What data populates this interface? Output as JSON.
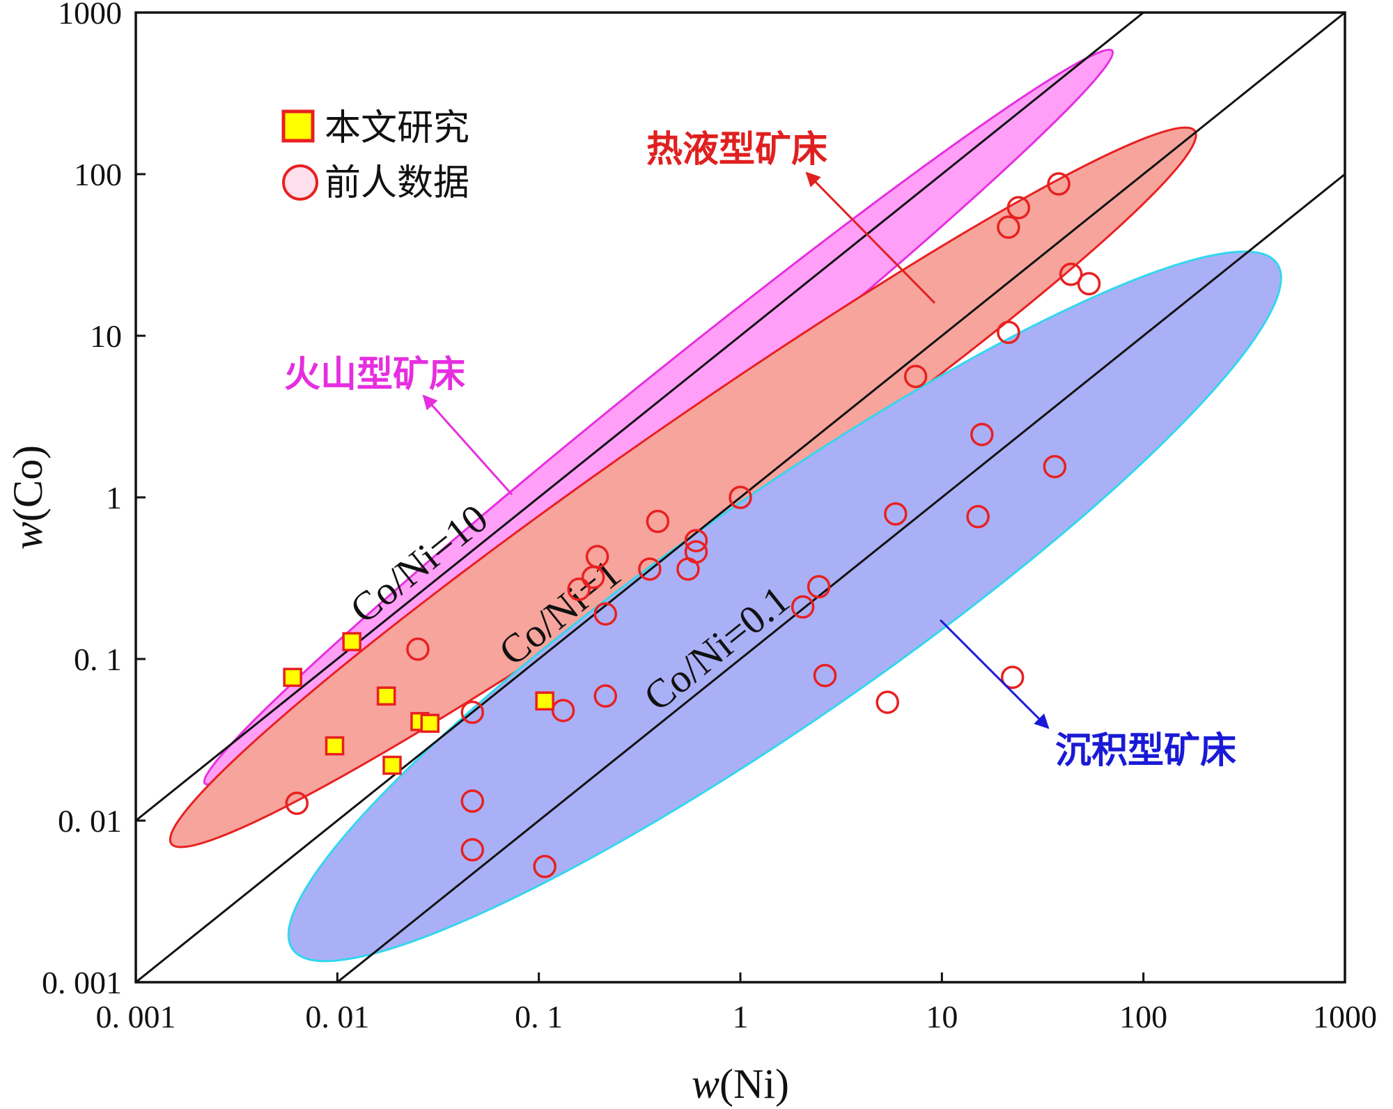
{
  "chart_data": {
    "type": "scatter",
    "scale": "log-log",
    "xlabel": "w(Ni)",
    "ylabel": "w(Co)",
    "xlim": [
      0.001,
      1000
    ],
    "ylim": [
      0.001,
      1000
    ],
    "x_ticks": [
      {
        "value": 0.001,
        "label": "0. 001"
      },
      {
        "value": 0.01,
        "label": "0. 01"
      },
      {
        "value": 0.1,
        "label": "0. 1"
      },
      {
        "value": 1,
        "label": "1"
      },
      {
        "value": 10,
        "label": "10"
      },
      {
        "value": 100,
        "label": "100"
      },
      {
        "value": 1000,
        "label": "1000"
      }
    ],
    "y_ticks": [
      {
        "value": 0.001,
        "label": "0. 001"
      },
      {
        "value": 0.01,
        "label": "0. 01"
      },
      {
        "value": 0.1,
        "label": "0. 1"
      },
      {
        "value": 1,
        "label": "1"
      },
      {
        "value": 10,
        "label": "10"
      },
      {
        "value": 100,
        "label": "100"
      },
      {
        "value": 1000,
        "label": "1000"
      }
    ],
    "reference_lines": [
      {
        "ratio": 10,
        "label": "Co/Ni=10"
      },
      {
        "ratio": 1,
        "label": "Co/Ni=1"
      },
      {
        "ratio": 0.1,
        "label": "Co/Ni=0.1"
      }
    ],
    "zones": [
      {
        "name": "volcanic",
        "label": "火山型矿床",
        "fill": "#ff9ff7",
        "stroke": "#e62ee0",
        "label_color": "#e62ee0",
        "ends": [
          [
            0.0022,
            0.017
          ],
          [
            70,
            580
          ]
        ],
        "half_width_decades": 0.18
      },
      {
        "name": "hydrothermal",
        "label": "热液型矿床",
        "fill": "#f6a49c",
        "stroke": "#e82020",
        "label_color": "#e02020",
        "ends": [
          [
            0.0015,
            0.0072
          ],
          [
            180,
            185
          ]
        ],
        "half_width_decades": 0.3
      },
      {
        "name": "sedimentary",
        "label": "沉积型矿床",
        "fill": "#aab0f6",
        "stroke": "#33d6ee",
        "label_color": "#1a1ad6",
        "ends": [
          [
            0.006,
            0.0016
          ],
          [
            460,
            28
          ]
        ],
        "half_width_decades": 0.55
      }
    ],
    "legend": [
      {
        "marker": "square",
        "label": "本文研究",
        "fill": "#ffff00",
        "stroke": "#e82020"
      },
      {
        "marker": "circle",
        "label": "前人数据",
        "fill": "#fde0ec",
        "stroke": "#e82020"
      }
    ],
    "series": [
      {
        "name": "本文研究",
        "marker": "square",
        "points": [
          [
            0.006,
            0.077
          ],
          [
            0.0118,
            0.128
          ],
          [
            0.0097,
            0.029
          ],
          [
            0.0175,
            0.059
          ],
          [
            0.0257,
            0.041
          ],
          [
            0.0288,
            0.04
          ],
          [
            0.0187,
            0.022
          ],
          [
            0.107,
            0.055
          ]
        ]
      },
      {
        "name": "前人数据",
        "marker": "circle",
        "points": [
          [
            0.0063,
            0.0128
          ],
          [
            0.0251,
            0.115
          ],
          [
            0.0468,
            0.0468
          ],
          [
            0.0468,
            0.0132
          ],
          [
            0.0468,
            0.0066
          ],
          [
            0.107,
            0.0052
          ],
          [
            0.132,
            0.048
          ],
          [
            0.214,
            0.059
          ],
          [
            0.214,
            0.19
          ],
          [
            0.158,
            0.27
          ],
          [
            0.186,
            0.32
          ],
          [
            0.195,
            0.43
          ],
          [
            0.355,
            0.36
          ],
          [
            0.389,
            0.71
          ],
          [
            0.55,
            0.36
          ],
          [
            0.603,
            0.46
          ],
          [
            0.603,
            0.54
          ],
          [
            1.0,
            1.0
          ],
          [
            2.04,
            0.21
          ],
          [
            2.45,
            0.28
          ],
          [
            2.63,
            0.079
          ],
          [
            5.37,
            0.054
          ],
          [
            5.89,
            0.79
          ],
          [
            7.41,
            5.6
          ],
          [
            15.1,
            0.76
          ],
          [
            15.8,
            2.45
          ],
          [
            22.4,
            0.077
          ],
          [
            21.4,
            10.5
          ],
          [
            21.4,
            47
          ],
          [
            24.0,
            62
          ],
          [
            36.3,
            1.55
          ],
          [
            38.0,
            87
          ],
          [
            43.7,
            24
          ],
          [
            53.7,
            21
          ]
        ]
      }
    ]
  }
}
